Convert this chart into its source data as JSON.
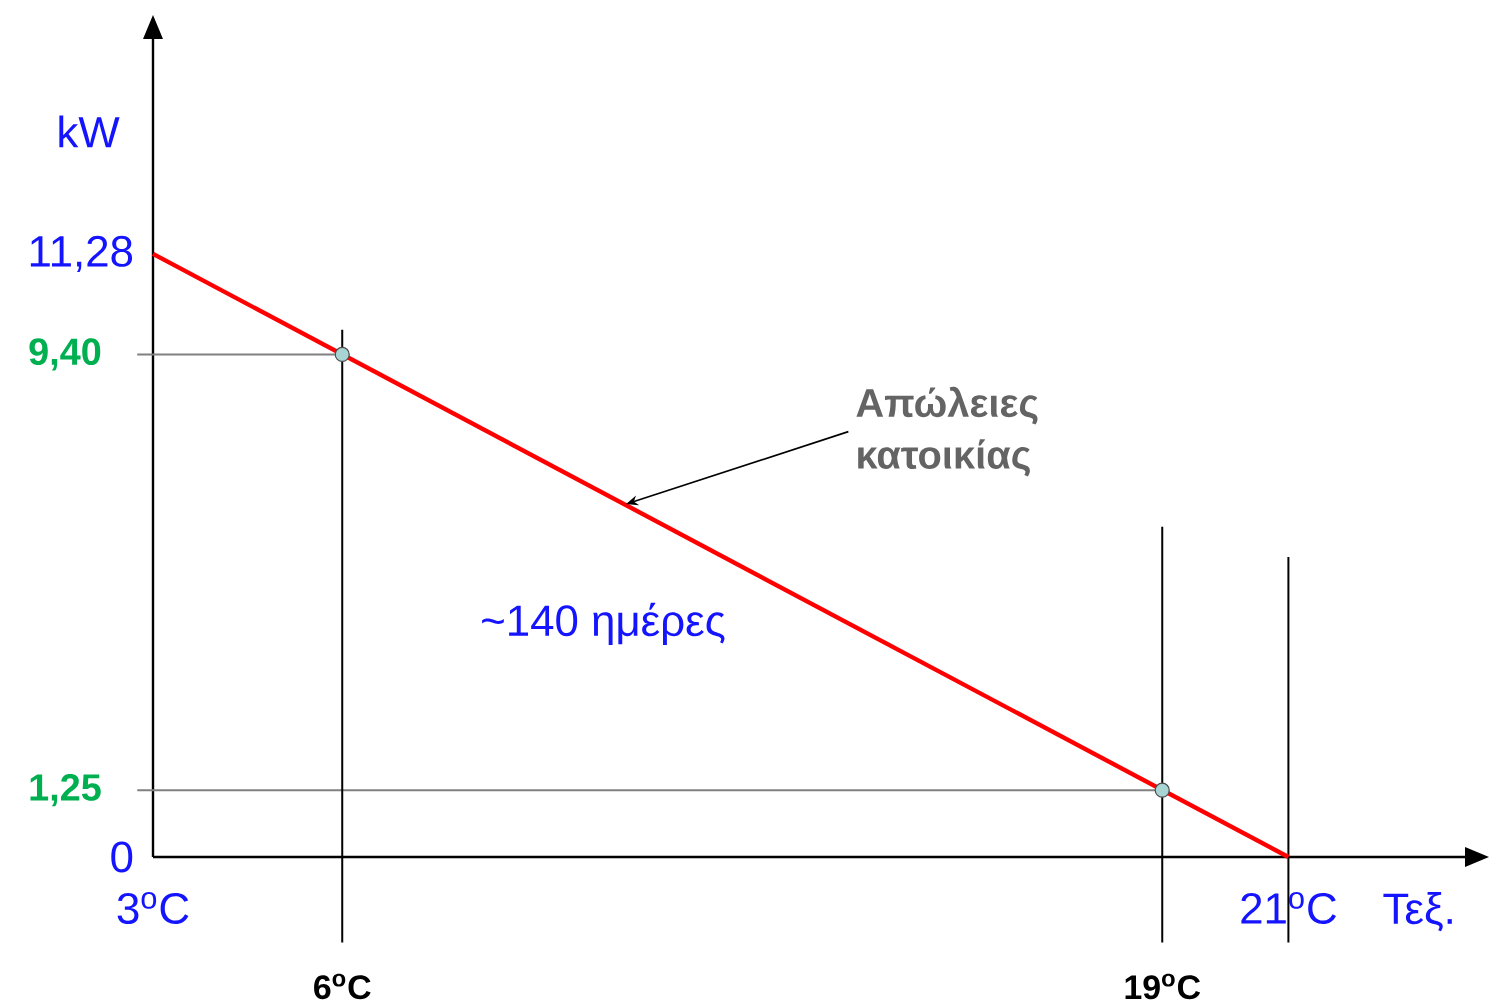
{
  "chart_data": {
    "type": "line",
    "xlabel": "Τεξ.",
    "ylabel": "kW",
    "series": [
      {
        "type": "line",
        "color": "#ff0000",
        "x": [
          3,
          21
        ],
        "values": [
          11.28,
          0
        ]
      },
      {
        "type": "scatter",
        "marker": "circle",
        "color": "#a9d4d4",
        "x": [
          6,
          19
        ],
        "values": [
          9.4,
          1.25
        ]
      }
    ],
    "xlim": [
      3,
      23.8
    ],
    "ylim": [
      0,
      15.3
    ],
    "xticks": [
      {
        "value": 3,
        "label": "3$^{o}$C"
      },
      {
        "value": 21,
        "label": "21$^{o}$C"
      }
    ],
    "yticks": [
      0,
      {
        "value": 11.28,
        "label": "11,28"
      }
    ],
    "ref_lines": [
      {
        "axis": "y",
        "value": 9.4,
        "label": "9,40",
        "color": "#808080"
      },
      {
        "axis": "y",
        "value": 1.25,
        "label": "1,25",
        "color": "#808080"
      },
      {
        "axis": "x",
        "value": 6,
        "label": "6$^{o}$C",
        "color": "#000000"
      },
      {
        "axis": "x",
        "value": 19,
        "label": "19$^{o}$C",
        "color": "#000000"
      },
      {
        "axis": "x",
        "value": 21,
        "color": "#000000"
      }
    ],
    "annotations": [
      {
        "text": "Απώλειες κατοικίας",
        "x": 10.5,
        "y": 6.6
      },
      "~140 ημέρες"
    ]
  }
}
